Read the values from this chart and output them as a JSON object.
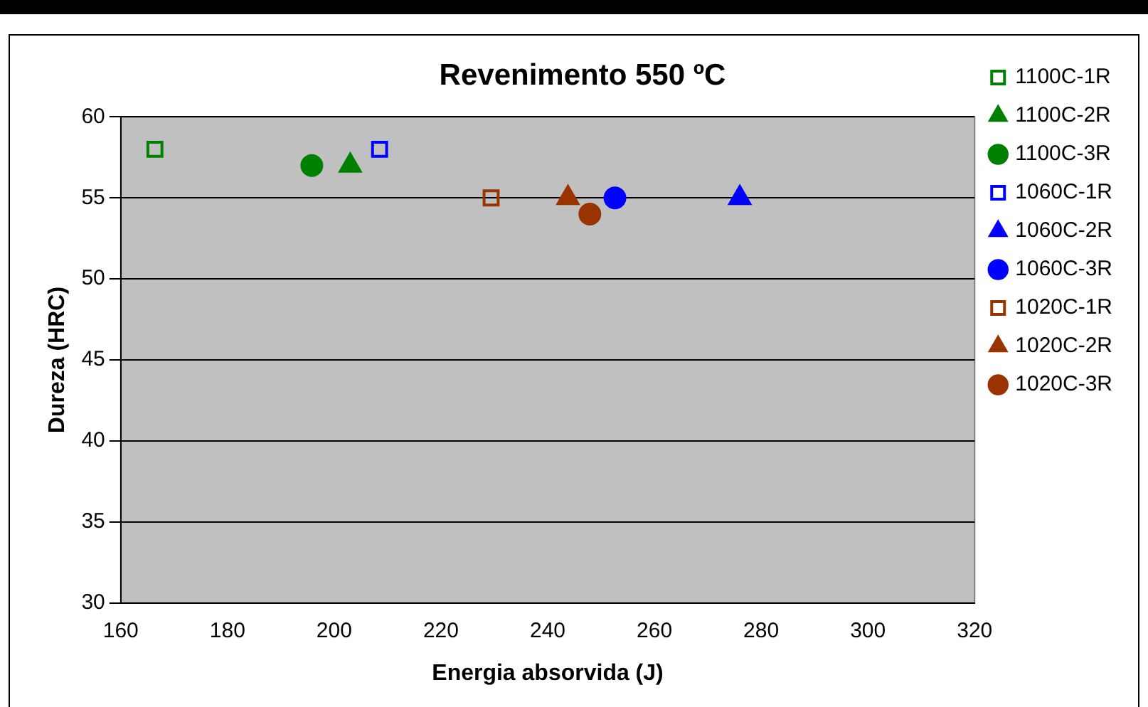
{
  "chart_data": {
    "type": "scatter",
    "title": "Revenimento 550 ºC",
    "xlabel": "Energia absorvida (J)",
    "ylabel": "Dureza (HRC)",
    "xlim": [
      160,
      320
    ],
    "xticks": [
      160,
      180,
      200,
      220,
      240,
      260,
      280,
      300,
      320
    ],
    "ylim": [
      30,
      60
    ],
    "yticks": [
      30,
      35,
      40,
      45,
      50,
      55,
      60
    ],
    "grid": "y",
    "legend": "right",
    "series": [
      {
        "name": "1100C-1R",
        "color": "#008000",
        "marker": "square",
        "x": [
          166.4
        ],
        "values": [
          58
        ]
      },
      {
        "name": "1100C-2R",
        "color": "#008000",
        "marker": "triangle",
        "x": [
          203
        ],
        "values": [
          57
        ]
      },
      {
        "name": "1100C-3R",
        "color": "#008000",
        "marker": "circle",
        "x": [
          195.8
        ],
        "values": [
          57
        ]
      },
      {
        "name": "1060C-1R",
        "color": "#0000ff",
        "marker": "square",
        "x": [
          208.5
        ],
        "values": [
          58
        ]
      },
      {
        "name": "1060C-2R",
        "color": "#0000ff",
        "marker": "triangle",
        "x": [
          276
        ],
        "values": [
          55
        ]
      },
      {
        "name": "1060C-3R",
        "color": "#0000ff",
        "marker": "circle",
        "x": [
          252.6
        ],
        "values": [
          55
        ]
      },
      {
        "name": "1020C-1R",
        "color": "#993300",
        "marker": "square",
        "x": [
          229.4
        ],
        "values": [
          55
        ]
      },
      {
        "name": "1020C-2R",
        "color": "#993300",
        "marker": "triangle",
        "x": [
          243.8
        ],
        "values": [
          55
        ]
      },
      {
        "name": "1020C-3R",
        "color": "#993300",
        "marker": "circle",
        "x": [
          247.9
        ],
        "values": [
          54
        ]
      }
    ]
  }
}
